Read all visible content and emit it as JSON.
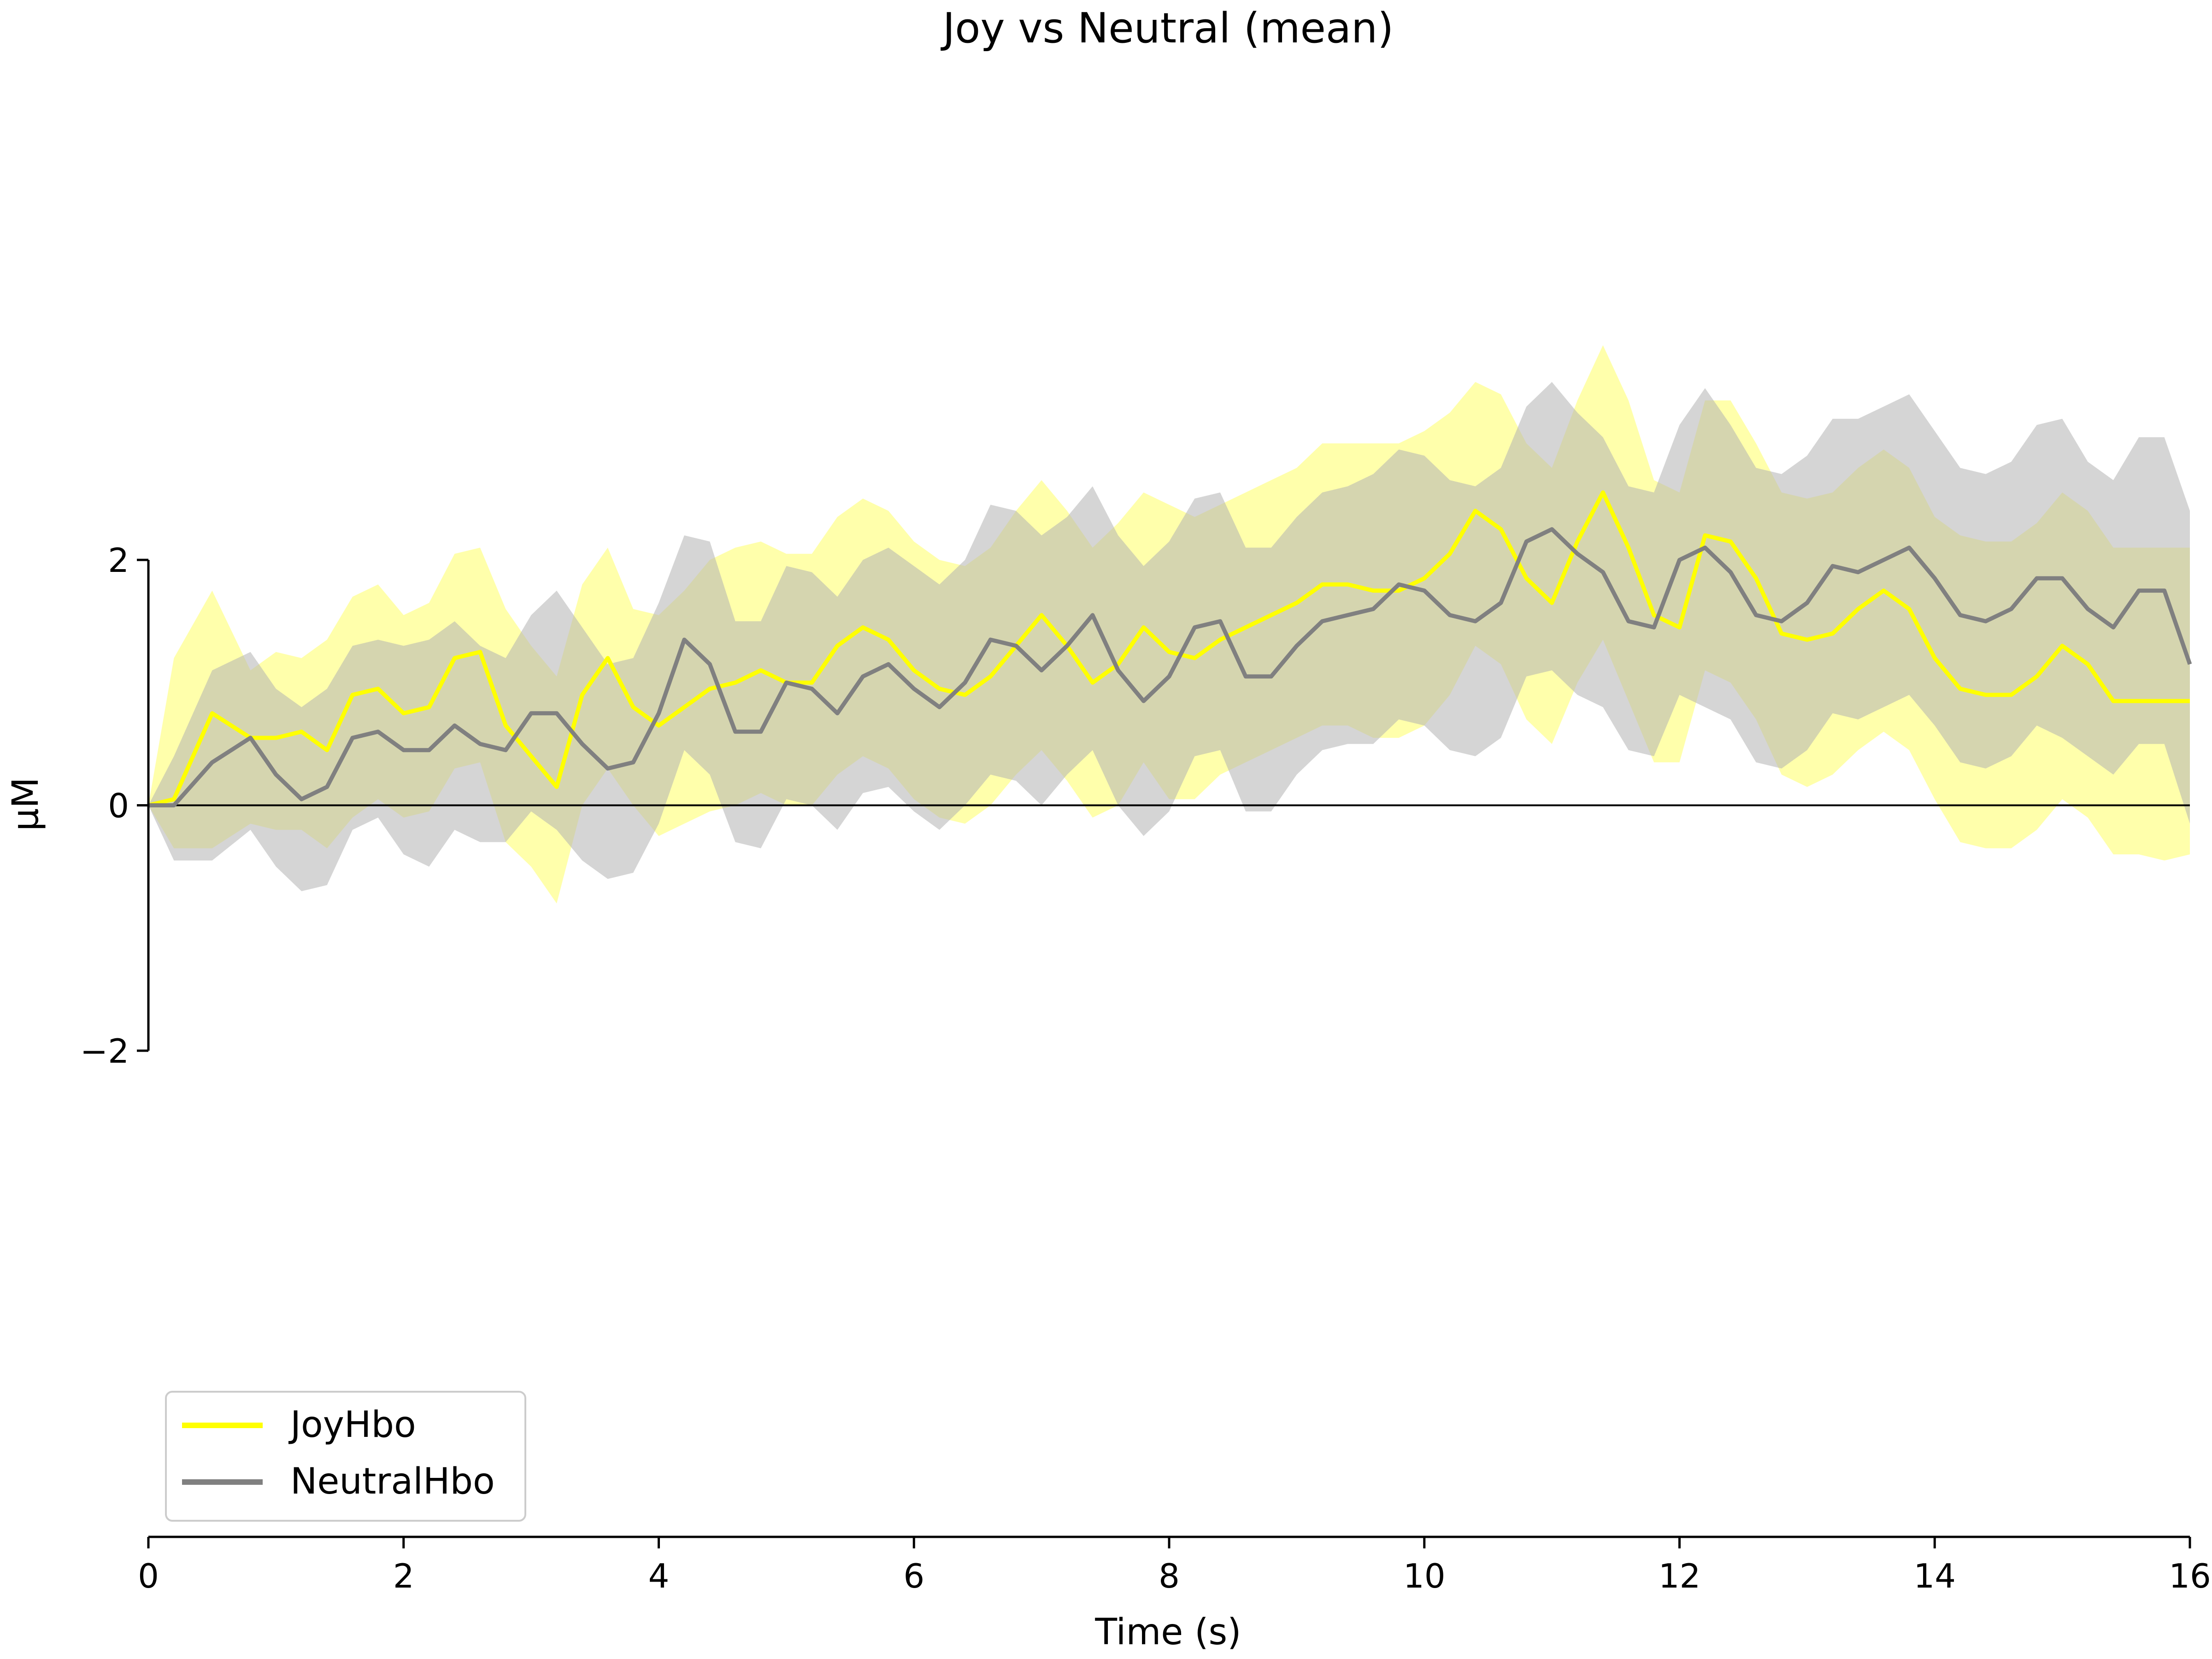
{
  "chart_data": {
    "type": "line",
    "title": "Joy vs Neutral (mean)",
    "xlabel": "Time (s)",
    "ylabel": "µM",
    "xlim": [
      0,
      16
    ],
    "ylim": [
      -2,
      2
    ],
    "x_ticks": [
      0,
      2,
      4,
      6,
      8,
      10,
      12,
      14,
      16
    ],
    "x_tick_labels": [
      "0",
      "2",
      "4",
      "6",
      "8",
      "10",
      "12",
      "14",
      "16"
    ],
    "y_ticks": [
      -2,
      0,
      2
    ],
    "y_tick_labels": [
      "−2",
      "0",
      "2"
    ],
    "zero_line": true,
    "grid": false,
    "legend_position": "lower-left",
    "series": [
      {
        "name": "JoyHbo",
        "color": "#ffff00",
        "band_color": "#ffff66",
        "x": [
          0,
          0.2,
          0.5,
          0.8,
          1.0,
          1.2,
          1.4,
          1.6,
          1.8,
          2.0,
          2.2,
          2.4,
          2.6,
          2.8,
          3.0,
          3.2,
          3.4,
          3.6,
          3.8,
          4.0,
          4.2,
          4.4,
          4.6,
          4.8,
          5.0,
          5.2,
          5.4,
          5.6,
          5.8,
          6.0,
          6.2,
          6.4,
          6.6,
          6.8,
          7.0,
          7.2,
          7.4,
          7.6,
          7.8,
          8.0,
          8.2,
          8.4,
          8.6,
          8.8,
          9.0,
          9.2,
          9.4,
          9.6,
          9.8,
          10.0,
          10.2,
          10.4,
          10.6,
          10.8,
          11.0,
          11.2,
          11.4,
          11.6,
          11.8,
          12.0,
          12.2,
          12.4,
          12.6,
          12.8,
          13.0,
          13.2,
          13.4,
          13.6,
          13.8,
          14.0,
          14.2,
          14.4,
          14.6,
          14.8,
          15.0,
          15.2,
          15.4,
          15.6,
          15.8,
          16.0
        ],
        "values": [
          0.0,
          0.05,
          0.75,
          0.55,
          0.55,
          0.6,
          0.45,
          0.9,
          0.95,
          0.75,
          0.8,
          1.2,
          1.25,
          0.65,
          0.4,
          0.15,
          0.9,
          1.2,
          0.8,
          0.65,
          0.8,
          0.95,
          1.0,
          1.1,
          1.0,
          1.0,
          1.3,
          1.45,
          1.35,
          1.1,
          0.95,
          0.9,
          1.05,
          1.3,
          1.55,
          1.3,
          1.0,
          1.15,
          1.45,
          1.25,
          1.2,
          1.35,
          1.45,
          1.55,
          1.65,
          1.8,
          1.8,
          1.75,
          1.75,
          1.85,
          2.05,
          2.4,
          2.25,
          1.85,
          1.65,
          2.15,
          2.55,
          2.1,
          1.55,
          1.45,
          2.2,
          2.15,
          1.85,
          1.4,
          1.35,
          1.4,
          1.6,
          1.75,
          1.6,
          1.2,
          0.95,
          0.9,
          0.9,
          1.05,
          1.3,
          1.15,
          0.85,
          0.85,
          0.85,
          0.85
        ],
        "upper": [
          0.0,
          1.2,
          1.75,
          1.1,
          1.25,
          1.2,
          1.35,
          1.7,
          1.8,
          1.55,
          1.65,
          2.05,
          2.1,
          1.6,
          1.3,
          1.05,
          1.8,
          2.1,
          1.6,
          1.55,
          1.75,
          2.0,
          2.1,
          2.15,
          2.05,
          2.05,
          2.35,
          2.5,
          2.4,
          2.15,
          2.0,
          1.95,
          2.1,
          2.4,
          2.65,
          2.4,
          2.1,
          2.3,
          2.55,
          2.45,
          2.35,
          2.45,
          2.55,
          2.65,
          2.75,
          2.95,
          2.95,
          2.95,
          2.95,
          3.05,
          3.2,
          3.45,
          3.35,
          2.95,
          2.75,
          3.3,
          3.75,
          3.3,
          2.65,
          2.55,
          3.3,
          3.3,
          2.95,
          2.55,
          2.5,
          2.55,
          2.75,
          2.9,
          2.75,
          2.35,
          2.2,
          2.15,
          2.15,
          2.3,
          2.55,
          2.4,
          2.1,
          2.1,
          2.1,
          2.1
        ],
        "lower": [
          0.0,
          -0.35,
          -0.35,
          -0.15,
          -0.2,
          -0.2,
          -0.35,
          -0.1,
          0.05,
          -0.1,
          -0.05,
          0.3,
          0.35,
          -0.3,
          -0.5,
          -0.8,
          0.0,
          0.3,
          0.0,
          -0.25,
          -0.15,
          -0.05,
          0.0,
          0.1,
          0.0,
          0.0,
          0.25,
          0.4,
          0.3,
          0.05,
          -0.1,
          -0.15,
          0.0,
          0.25,
          0.45,
          0.2,
          -0.1,
          0.0,
          0.35,
          0.05,
          0.05,
          0.25,
          0.35,
          0.45,
          0.55,
          0.65,
          0.65,
          0.55,
          0.55,
          0.65,
          0.9,
          1.3,
          1.15,
          0.7,
          0.5,
          1.0,
          1.35,
          0.85,
          0.35,
          0.35,
          1.1,
          1.0,
          0.7,
          0.25,
          0.15,
          0.25,
          0.45,
          0.6,
          0.45,
          0.05,
          -0.3,
          -0.35,
          -0.35,
          -0.2,
          0.05,
          -0.1,
          -0.4,
          -0.4,
          -0.45,
          -0.4
        ]
      },
      {
        "name": "NeutralHbo",
        "color": "#808080",
        "band_color": "#b3b3b3",
        "x": [
          0,
          0.2,
          0.5,
          0.8,
          1.0,
          1.2,
          1.4,
          1.6,
          1.8,
          2.0,
          2.2,
          2.4,
          2.6,
          2.8,
          3.0,
          3.2,
          3.4,
          3.6,
          3.8,
          4.0,
          4.2,
          4.4,
          4.6,
          4.8,
          5.0,
          5.2,
          5.4,
          5.6,
          5.8,
          6.0,
          6.2,
          6.4,
          6.6,
          6.8,
          7.0,
          7.2,
          7.4,
          7.6,
          7.8,
          8.0,
          8.2,
          8.4,
          8.6,
          8.8,
          9.0,
          9.2,
          9.4,
          9.6,
          9.8,
          10.0,
          10.2,
          10.4,
          10.6,
          10.8,
          11.0,
          11.2,
          11.4,
          11.6,
          11.8,
          12.0,
          12.2,
          12.4,
          12.6,
          12.8,
          13.0,
          13.2,
          13.4,
          13.6,
          13.8,
          14.0,
          14.2,
          14.4,
          14.6,
          14.8,
          15.0,
          15.2,
          15.4,
          15.6,
          15.8,
          16.0
        ],
        "values": [
          0.0,
          0.0,
          0.35,
          0.55,
          0.25,
          0.05,
          0.15,
          0.55,
          0.6,
          0.45,
          0.45,
          0.65,
          0.5,
          0.45,
          0.75,
          0.75,
          0.5,
          0.3,
          0.35,
          0.75,
          1.35,
          1.15,
          0.6,
          0.6,
          1.0,
          0.95,
          0.75,
          1.05,
          1.15,
          0.95,
          0.8,
          1.0,
          1.35,
          1.3,
          1.1,
          1.3,
          1.55,
          1.1,
          0.85,
          1.05,
          1.45,
          1.5,
          1.05,
          1.05,
          1.3,
          1.5,
          1.55,
          1.6,
          1.8,
          1.75,
          1.55,
          1.5,
          1.65,
          2.15,
          2.25,
          2.05,
          1.9,
          1.5,
          1.45,
          2.0,
          2.1,
          1.9,
          1.55,
          1.5,
          1.65,
          1.95,
          1.9,
          2.0,
          2.1,
          1.85,
          1.55,
          1.5,
          1.6,
          1.85,
          1.85,
          1.6,
          1.45,
          1.75,
          1.75,
          1.15
        ],
        "upper": [
          0.0,
          0.4,
          1.1,
          1.25,
          0.95,
          0.8,
          0.95,
          1.3,
          1.35,
          1.3,
          1.35,
          1.5,
          1.3,
          1.2,
          1.55,
          1.75,
          1.45,
          1.15,
          1.2,
          1.65,
          2.2,
          2.15,
          1.5,
          1.5,
          1.95,
          1.9,
          1.7,
          2.0,
          2.1,
          1.95,
          1.8,
          2.0,
          2.45,
          2.4,
          2.2,
          2.35,
          2.6,
          2.2,
          1.95,
          2.15,
          2.5,
          2.55,
          2.1,
          2.1,
          2.35,
          2.55,
          2.6,
          2.7,
          2.9,
          2.85,
          2.65,
          2.6,
          2.75,
          3.25,
          3.45,
          3.2,
          3.0,
          2.6,
          2.55,
          3.1,
          3.4,
          3.1,
          2.75,
          2.7,
          2.85,
          3.15,
          3.15,
          3.25,
          3.35,
          3.05,
          2.75,
          2.7,
          2.8,
          3.1,
          3.15,
          2.8,
          2.65,
          3.0,
          3.0,
          2.4
        ],
        "lower": [
          0.0,
          -0.45,
          -0.45,
          -0.2,
          -0.5,
          -0.7,
          -0.65,
          -0.2,
          -0.1,
          -0.4,
          -0.5,
          -0.2,
          -0.3,
          -0.3,
          -0.05,
          -0.2,
          -0.45,
          -0.6,
          -0.55,
          -0.15,
          0.45,
          0.25,
          -0.3,
          -0.35,
          0.05,
          0.0,
          -0.2,
          0.1,
          0.15,
          -0.05,
          -0.2,
          0.0,
          0.25,
          0.2,
          0.0,
          0.25,
          0.45,
          0.0,
          -0.25,
          -0.05,
          0.4,
          0.45,
          -0.05,
          -0.05,
          0.25,
          0.45,
          0.5,
          0.5,
          0.7,
          0.65,
          0.45,
          0.4,
          0.55,
          1.05,
          1.1,
          0.9,
          0.8,
          0.45,
          0.4,
          0.9,
          0.8,
          0.7,
          0.35,
          0.3,
          0.45,
          0.75,
          0.7,
          0.8,
          0.9,
          0.65,
          0.35,
          0.3,
          0.4,
          0.65,
          0.55,
          0.4,
          0.25,
          0.5,
          0.5,
          -0.15
        ]
      }
    ]
  }
}
